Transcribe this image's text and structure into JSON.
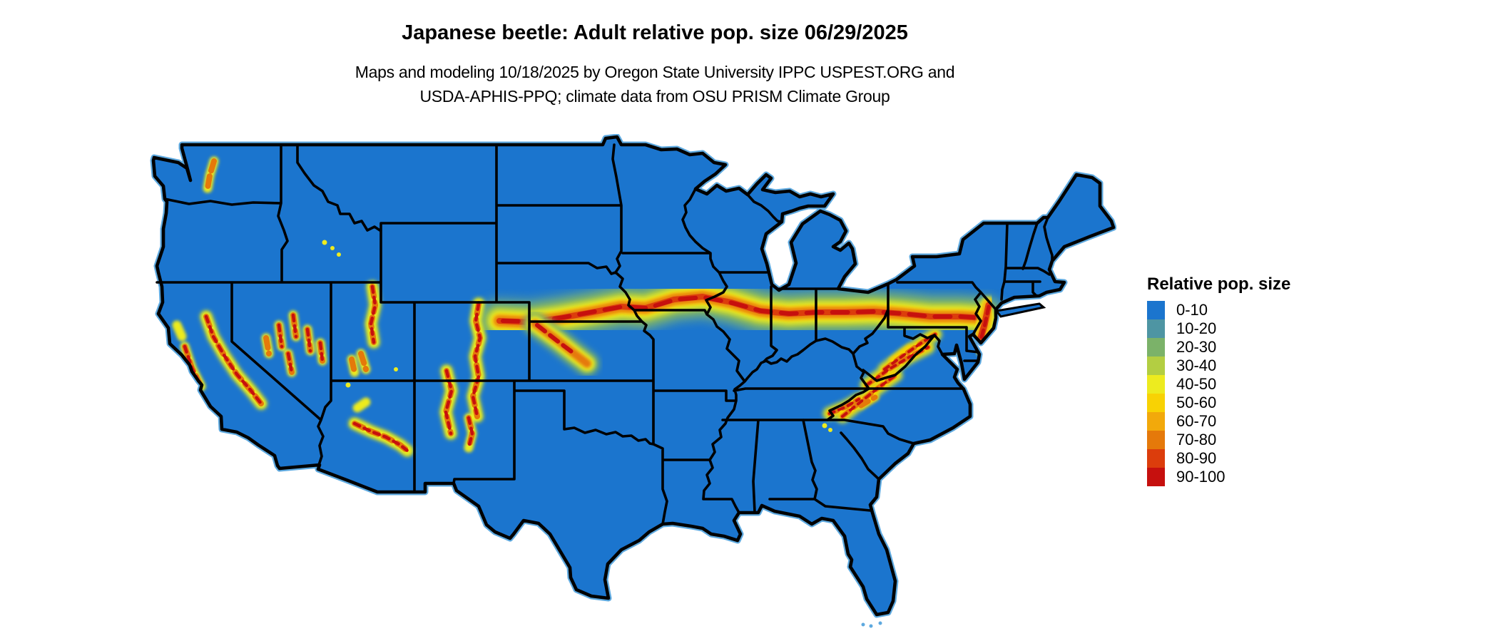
{
  "title": "Japanese beetle: Adult relative pop. size 06/29/2025",
  "subtitle_line1": "Maps and modeling 10/18/2025 by Oregon State University IPPC USPEST.ORG and",
  "subtitle_line2": "USDA-APHIS-PPQ; climate data from OSU PRISM Climate Group",
  "legend": {
    "title": "Relative pop. size",
    "items": [
      {
        "label": "0-10",
        "color": "#1B75CE"
      },
      {
        "label": "10-20",
        "color": "#4E95A3"
      },
      {
        "label": "20-30",
        "color": "#7BB269"
      },
      {
        "label": "30-40",
        "color": "#B3CE42"
      },
      {
        "label": "40-50",
        "color": "#EDEB1F"
      },
      {
        "label": "50-60",
        "color": "#F8D204"
      },
      {
        "label": "60-70",
        "color": "#F2A90B"
      },
      {
        "label": "70-80",
        "color": "#E5790A"
      },
      {
        "label": "80-90",
        "color": "#DC3D0C"
      },
      {
        "label": "90-100",
        "color": "#C6100E"
      }
    ]
  },
  "map": {
    "region": "Continental United States",
    "base_color": "#1B75CE",
    "border_color": "#000000",
    "water_fringe_color": "#5EA9DF",
    "high_population_band": "Eastern Colorado through Nebraska-Kansas border, Iowa, northern Missouri, Illinois, Indiana, Ohio, southern Pennsylvania to New Jersey",
    "other_hotspots": "Sierra Nevada, Nevada ranges, Wasatch Utah, Arizona-New Mexico mountains, Colorado Front Range, Washington Cascades, Appalachians (WV, VA, NC, TN)"
  }
}
